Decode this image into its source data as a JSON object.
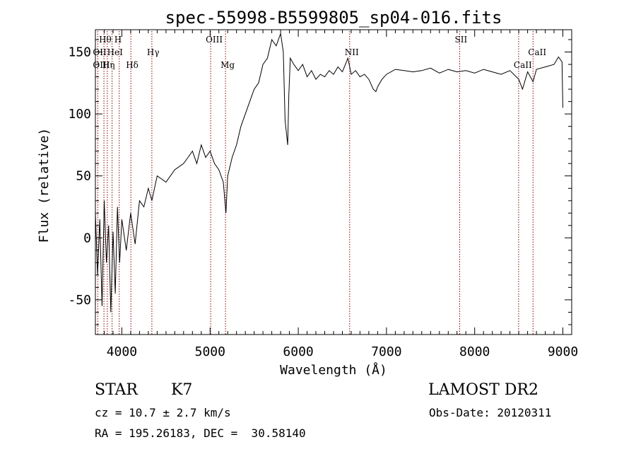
{
  "chart_data": {
    "type": "line",
    "title": "spec-55998-B5599805_sp04-016.fits",
    "xlabel": "Wavelength (Å)",
    "ylabel": "Flux (relative)",
    "xlim": [
      3700,
      9100
    ],
    "ylim": [
      -78,
      168
    ],
    "xticks": [
      4000,
      5000,
      6000,
      7000,
      8000,
      9000
    ],
    "yticks": [
      -50,
      0,
      50,
      100,
      150
    ],
    "grid": false,
    "series": [
      {
        "color": "#000000",
        "x": [
          3700,
          3725,
          3750,
          3775,
          3800,
          3825,
          3850,
          3875,
          3900,
          3925,
          3950,
          3975,
          4000,
          4050,
          4100,
          4150,
          4200,
          4250,
          4300,
          4340,
          4400,
          4500,
          4600,
          4700,
          4750,
          4800,
          4850,
          4900,
          4950,
          5000,
          5050,
          5100,
          5150,
          5180,
          5200,
          5250,
          5300,
          5350,
          5400,
          5450,
          5500,
          5550,
          5600,
          5650,
          5700,
          5750,
          5800,
          5830,
          5850,
          5880,
          5893,
          5910,
          5950,
          6000,
          6050,
          6100,
          6150,
          6200,
          6250,
          6300,
          6350,
          6400,
          6450,
          6500,
          6563,
          6600,
          6650,
          6700,
          6750,
          6800,
          6850,
          6880,
          6900,
          6950,
          7000,
          7100,
          7200,
          7300,
          7400,
          7500,
          7600,
          7700,
          7800,
          7900,
          8000,
          8100,
          8200,
          8300,
          8400,
          8500,
          8542,
          8600,
          8662,
          8700,
          8800,
          8900,
          8950,
          8990,
          9000
        ],
        "values": [
          20,
          -30,
          15,
          -55,
          30,
          -20,
          10,
          -60,
          5,
          -45,
          25,
          -20,
          15,
          -10,
          20,
          -5,
          30,
          25,
          40,
          30,
          50,
          45,
          55,
          60,
          65,
          70,
          60,
          75,
          65,
          70,
          60,
          55,
          45,
          20,
          50,
          65,
          75,
          90,
          100,
          110,
          120,
          125,
          140,
          145,
          160,
          155,
          165,
          150,
          95,
          75,
          115,
          145,
          140,
          135,
          140,
          130,
          135,
          128,
          132,
          130,
          135,
          132,
          138,
          134,
          145,
          132,
          135,
          130,
          132,
          128,
          120,
          118,
          122,
          128,
          132,
          136,
          135,
          134,
          135,
          137,
          133,
          136,
          134,
          135,
          133,
          136,
          134,
          132,
          135,
          128,
          120,
          134,
          126,
          136,
          138,
          140,
          146,
          142,
          105
        ]
      }
    ],
    "line_markers": [
      {
        "label": "Hθ",
        "wavelength": 3797,
        "row": 0
      },
      {
        "label": "H",
        "wavelength": 3970,
        "row": 0
      },
      {
        "label": "OII",
        "wavelength": 3727,
        "row": 1
      },
      {
        "label": "HeI",
        "wavelength": 3889,
        "row": 1
      },
      {
        "label": "Hγ",
        "wavelength": 4340,
        "row": 1
      },
      {
        "label": "OIII",
        "wavelength": 3727,
        "row": 2
      },
      {
        "label": "Hη",
        "wavelength": 3835,
        "row": 2
      },
      {
        "label": "Hδ",
        "wavelength": 4102,
        "row": 2
      },
      {
        "label": "OIII",
        "wavelength": 5007,
        "row": 0
      },
      {
        "label": "Mg",
        "wavelength": 5175,
        "row": 2
      },
      {
        "label": "NII",
        "wavelength": 6583,
        "row": 1
      },
      {
        "label": "SII",
        "wavelength": 7830,
        "row": 0
      },
      {
        "label": "CaII",
        "wavelength": 8662,
        "row": 1
      },
      {
        "label": "CaII",
        "wavelength": 8498,
        "row": 2
      }
    ],
    "marker_lines": [
      3727,
      3797,
      3835,
      3889,
      3970,
      4102,
      4340,
      5007,
      5175,
      6583,
      7830,
      8498,
      8662
    ]
  },
  "info": {
    "object_class": "STAR",
    "subclass": "K7",
    "survey": "LAMOST DR2",
    "cz": "cz = 10.7 ± 2.7 km/s",
    "obs_date": "Obs-Date: 20120311",
    "coords": "RA = 195.26183, DEC =  30.58140"
  },
  "colors": {
    "marker_line": "#8b0000",
    "axis": "#000000",
    "spectrum": "#000000"
  }
}
